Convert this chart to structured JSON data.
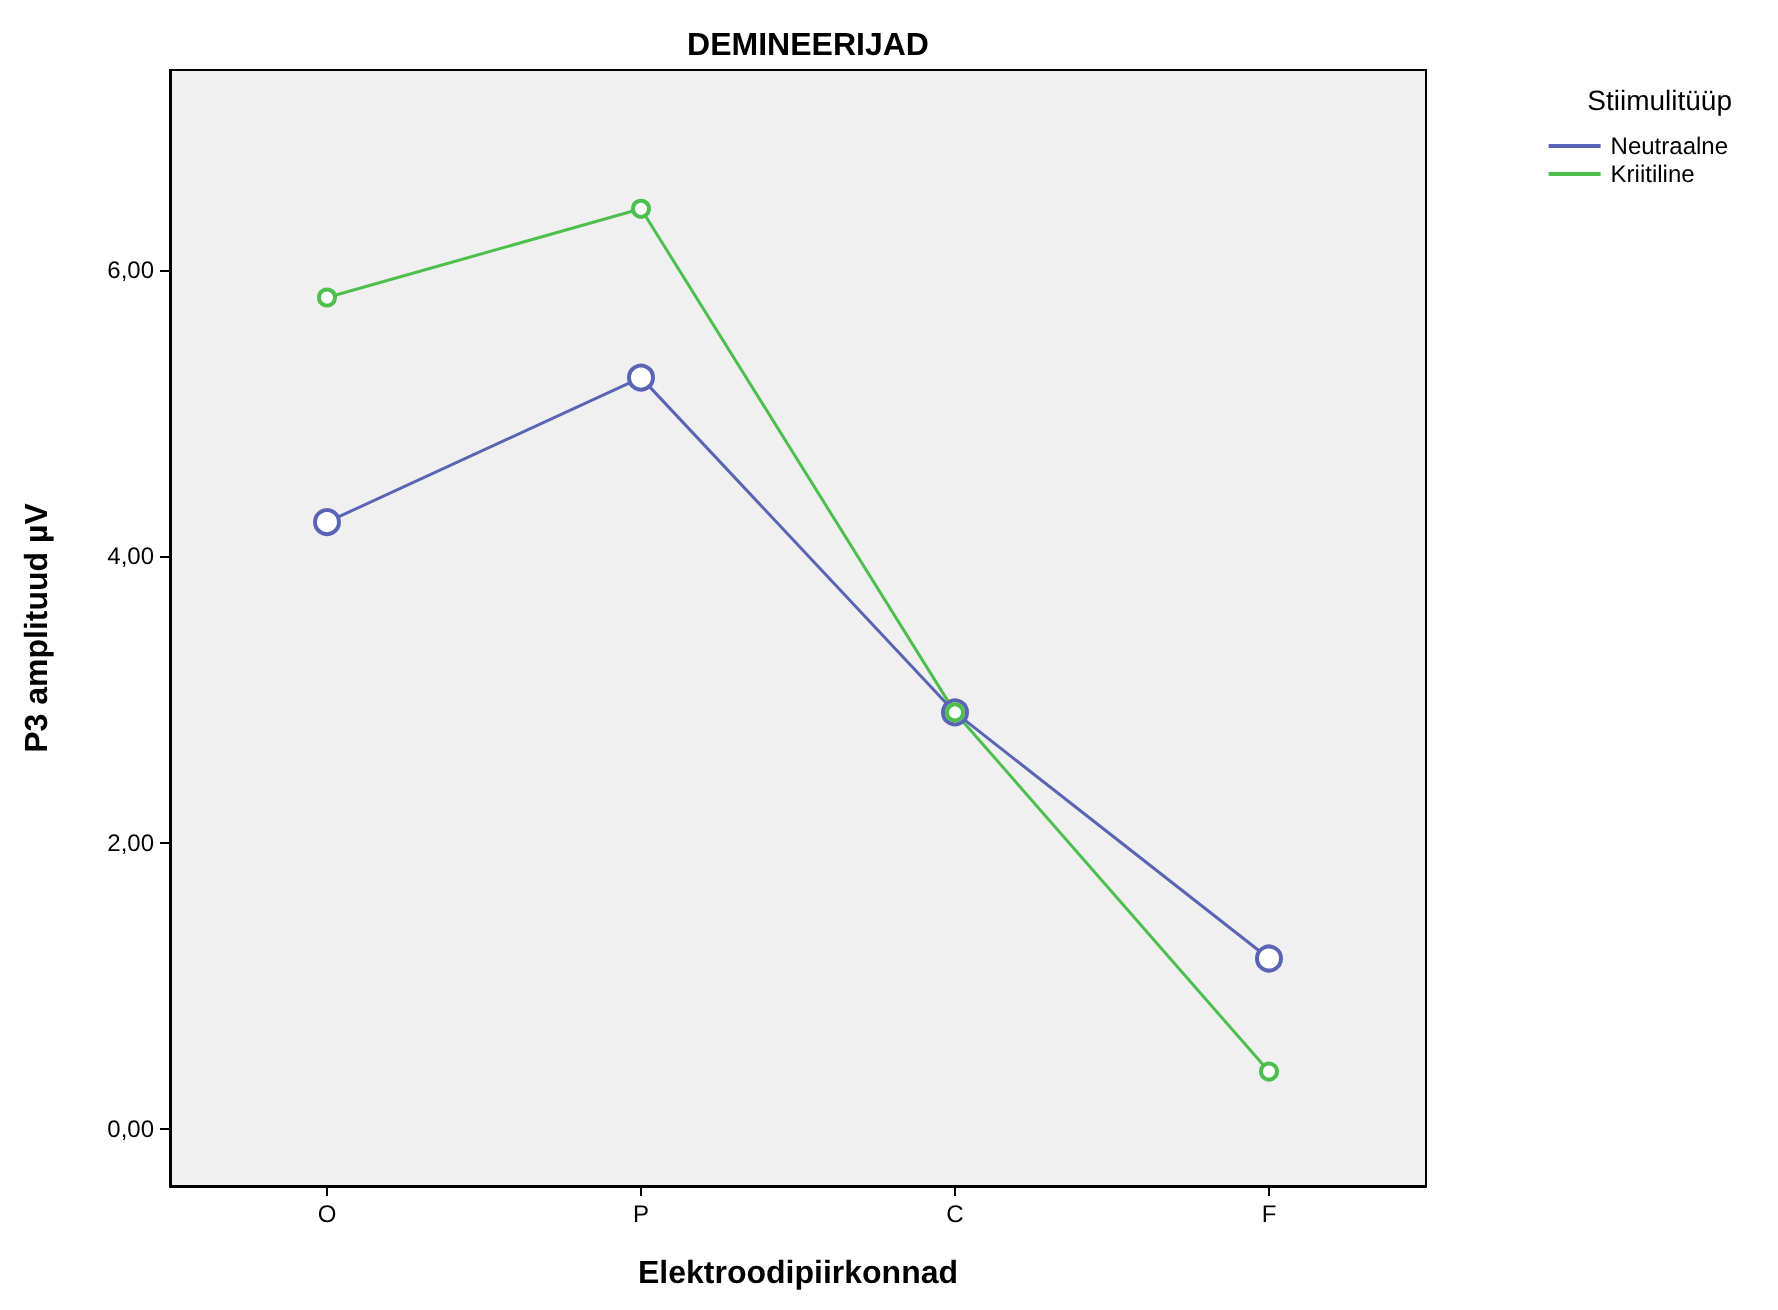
{
  "chart_data": {
    "type": "line",
    "title": "DEMINEERIJAD",
    "xlabel": "Elektroodipiirkonnad",
    "ylabel": "P3 amplituud µV",
    "legend_title": "Stiimulitüüp",
    "categories": [
      "O",
      "P",
      "C",
      "F"
    ],
    "series": [
      {
        "name": "Neutraalne",
        "color": "#5a64b4",
        "values": [
          4.24,
          5.25,
          2.91,
          1.19
        ]
      },
      {
        "name": "Kriitiline",
        "color": "#4cbf4c",
        "values": [
          5.81,
          6.43,
          2.91,
          0.4
        ]
      }
    ],
    "ylim": [
      -0.4,
      7.4
    ],
    "yticks": [
      {
        "value": 0,
        "label": "0,00"
      },
      {
        "value": 2,
        "label": "2,00"
      },
      {
        "value": 4,
        "label": "4,00"
      },
      {
        "value": 6,
        "label": "6,00"
      }
    ],
    "grid": false,
    "legend": "top right",
    "marker": "circle",
    "line_style": "solid"
  }
}
